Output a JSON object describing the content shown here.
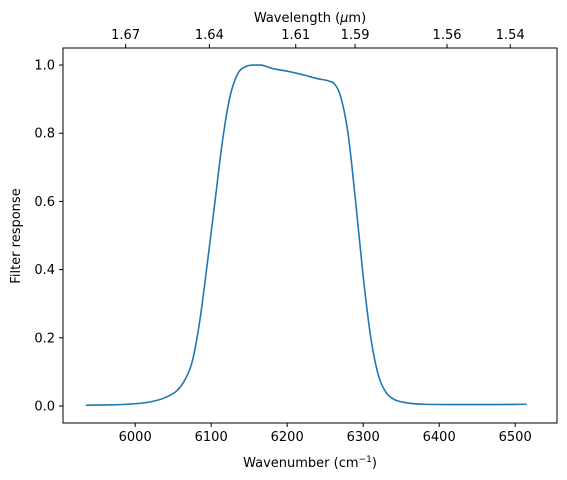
{
  "chart_data": {
    "type": "line",
    "xlabel": "Wavenumber (cm",
    "xlabel_sup": "−1",
    "xlabel_close": ")",
    "ylabel": "Filter response",
    "top_xlabel": "Wavelength (",
    "top_xlabel_mu": "μ",
    "top_xlabel_rest": "m)",
    "xlim": [
      5905,
      6555
    ],
    "ylim": [
      -0.05,
      1.05
    ],
    "x_ticks": [
      6000,
      6100,
      6200,
      6300,
      6400,
      6500
    ],
    "x_tick_labels": [
      "6000",
      "6100",
      "6200",
      "6300",
      "6400",
      "6500"
    ],
    "y_ticks": [
      0.0,
      0.2,
      0.4,
      0.6,
      0.8,
      1.0
    ],
    "y_tick_labels": [
      "0.0",
      "0.2",
      "0.4",
      "0.6",
      "0.8",
      "1.0"
    ],
    "top_ticks": [
      {
        "wavenumber": 5987.4,
        "label": "1.67"
      },
      {
        "wavenumber": 6097.6,
        "label": "1.64"
      },
      {
        "wavenumber": 6211.2,
        "label": "1.61"
      },
      {
        "wavenumber": 6289.3,
        "label": "1.59"
      },
      {
        "wavenumber": 6410.3,
        "label": "1.56"
      },
      {
        "wavenumber": 6493.5,
        "label": "1.54"
      }
    ],
    "grid": false,
    "series": [
      {
        "color": "#1f77b4",
        "x": [
          5935,
          5960,
          5990,
          6020,
          6040,
          6055,
          6065,
          6075,
          6085,
          6095,
          6105,
          6115,
          6125,
          6135,
          6145,
          6155,
          6165,
          6180,
          6200,
          6220,
          6240,
          6255,
          6262,
          6270,
          6280,
          6290,
          6300,
          6310,
          6320,
          6330,
          6340,
          6355,
          6380,
          6420,
          6470,
          6515
        ],
        "y": [
          0.002,
          0.003,
          0.005,
          0.012,
          0.025,
          0.045,
          0.075,
          0.13,
          0.25,
          0.42,
          0.6,
          0.78,
          0.91,
          0.975,
          0.995,
          1.0,
          1.0,
          0.99,
          0.982,
          0.972,
          0.96,
          0.953,
          0.945,
          0.91,
          0.8,
          0.6,
          0.38,
          0.2,
          0.09,
          0.04,
          0.02,
          0.01,
          0.005,
          0.004,
          0.004,
          0.005
        ]
      }
    ]
  }
}
